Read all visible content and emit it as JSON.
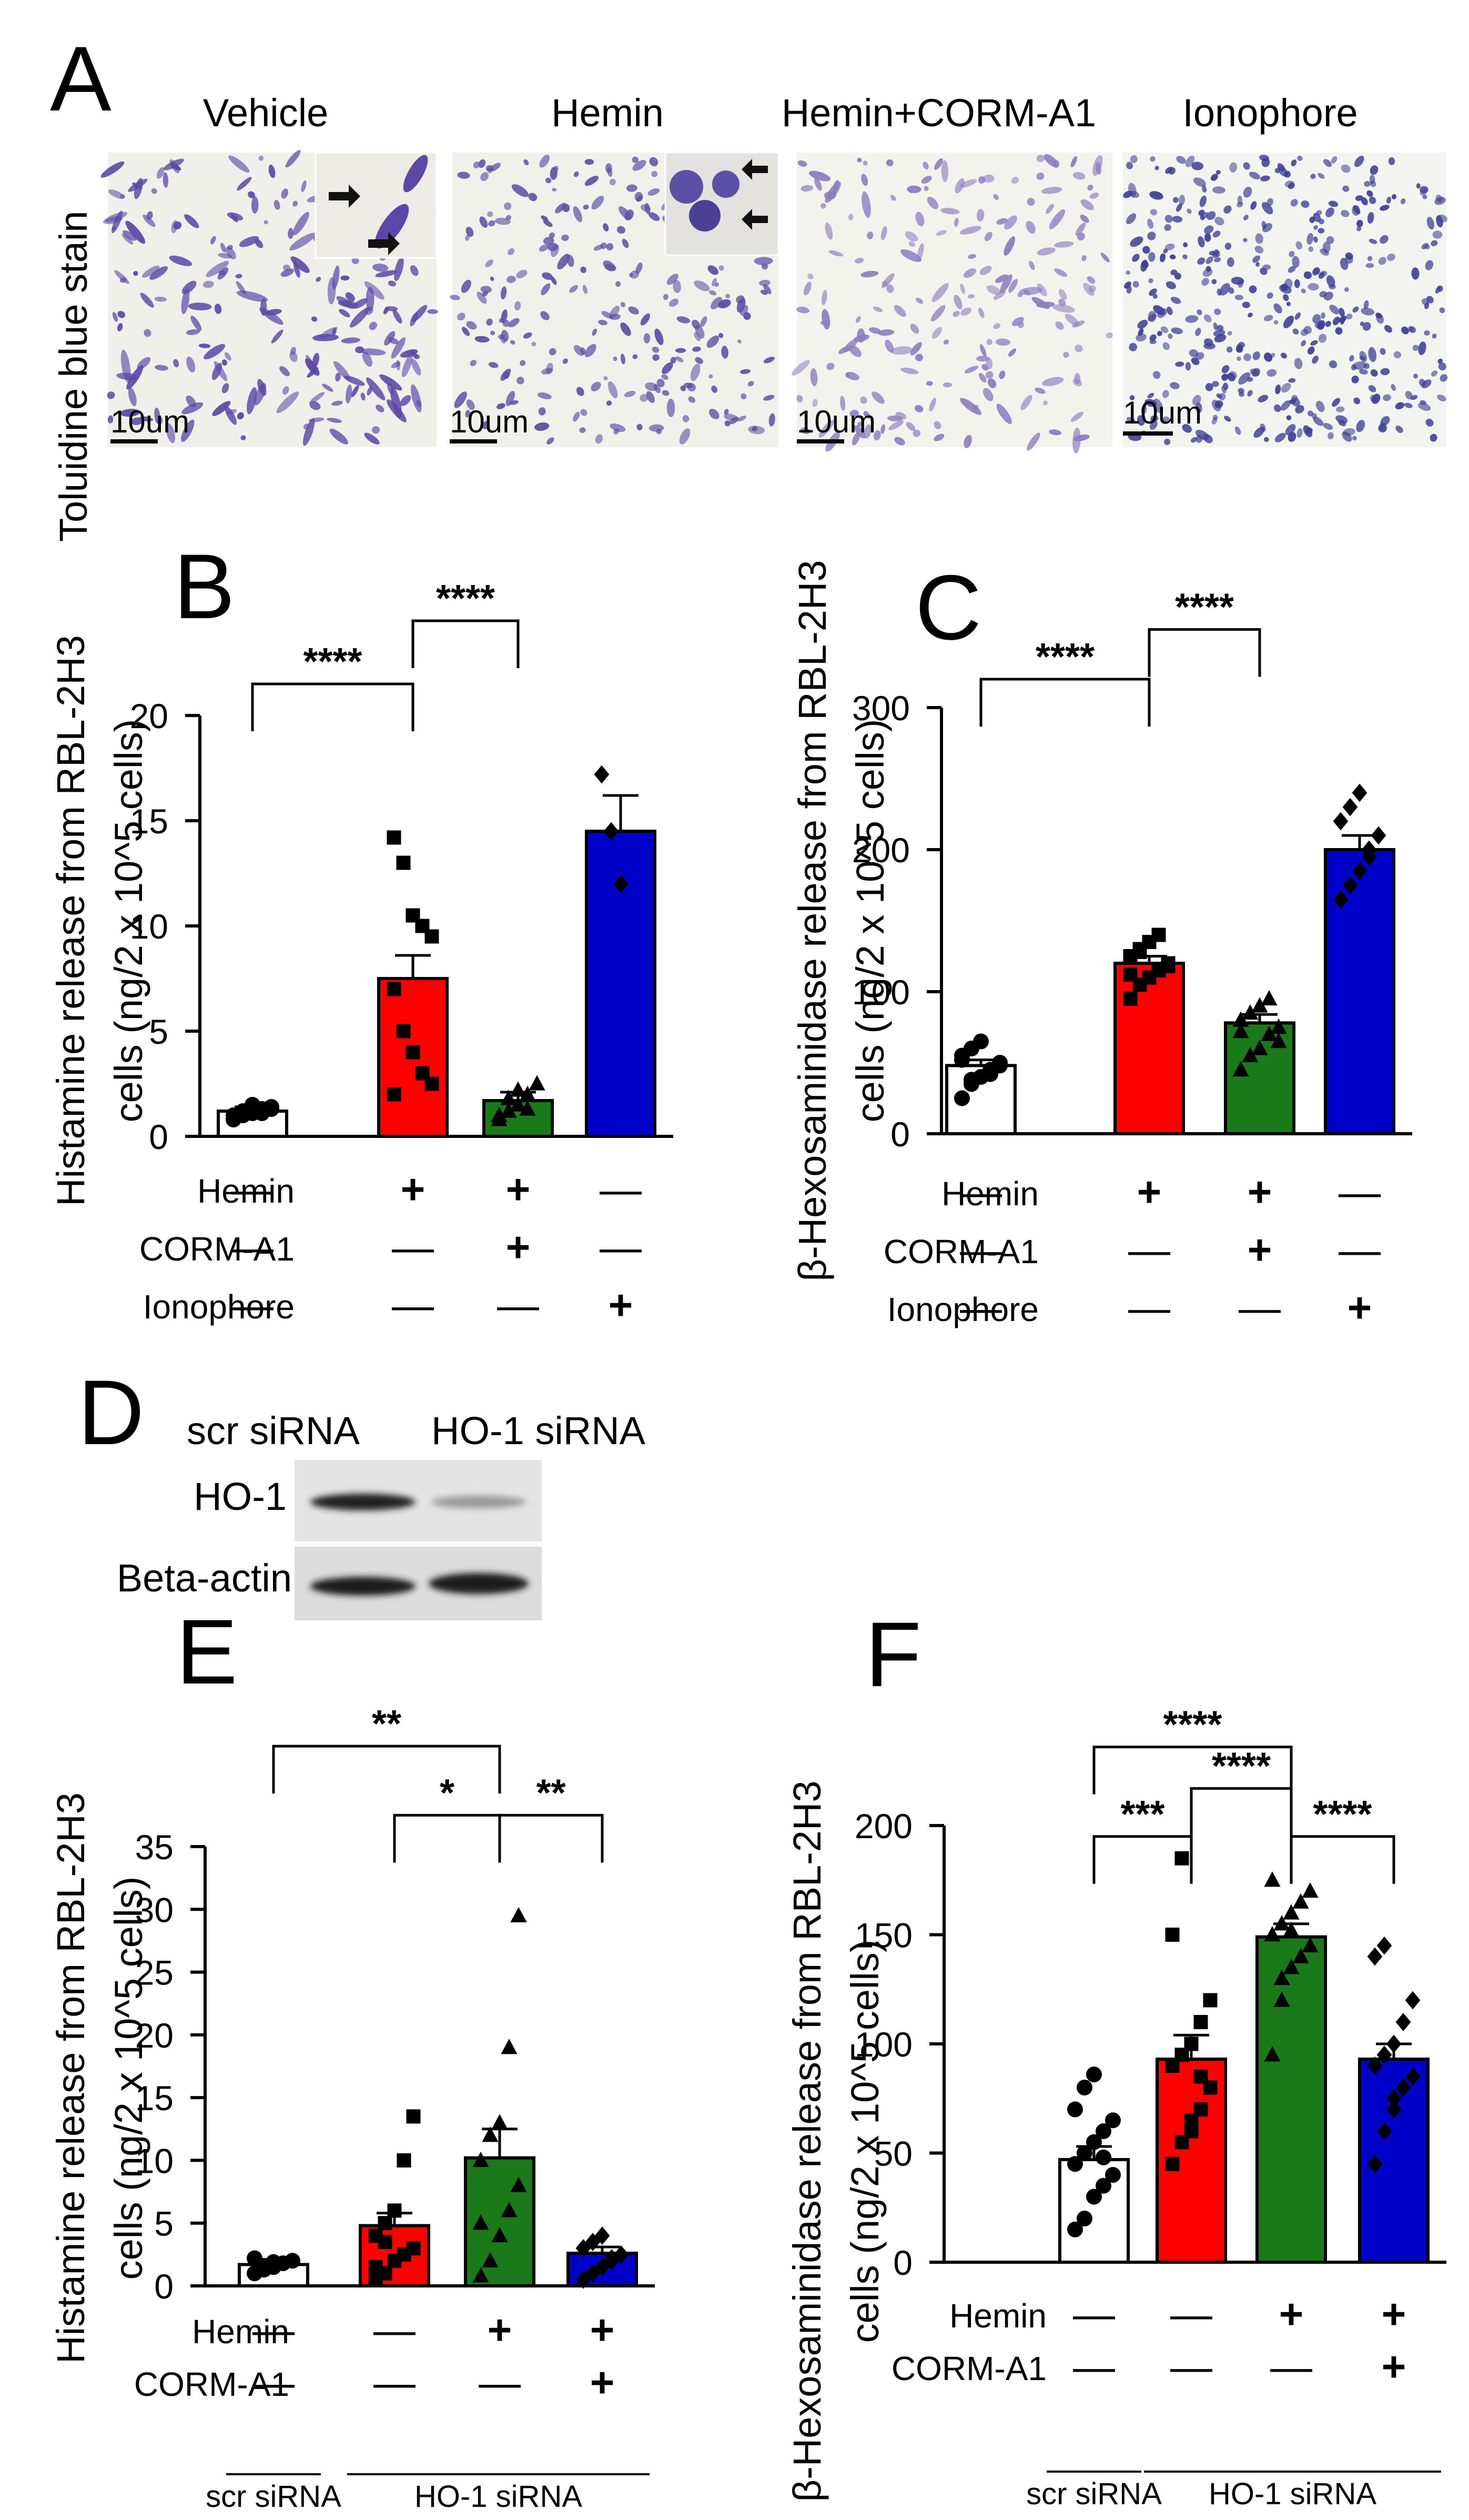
{
  "panels": {
    "A": "A",
    "B": "B",
    "C": "C",
    "D": "D",
    "E": "E",
    "F": "F"
  },
  "panel_a": {
    "side_label": "Toluidine blue stain",
    "scale_bar": "10um",
    "images": [
      {
        "label": "Vehicle",
        "cell_color": "#5c47a8"
      },
      {
        "label": "Hemin",
        "cell_color": "#5b4fa6"
      },
      {
        "label": "Hemin+CORM-A1",
        "cell_color": "#8a7cc0"
      },
      {
        "label": "Ionophore",
        "cell_color": "#3c3f97"
      }
    ]
  },
  "panel_d": {
    "columns": [
      "scr siRNA",
      "HO-1 siRNA"
    ],
    "rows": [
      "HO-1",
      "Beta-actin"
    ]
  },
  "conditions": {
    "hemin": "Hemin",
    "corm": "CORM-A1",
    "ionophore": "Ionophore",
    "plus": "+",
    "minus": "—",
    "group_scr": "scr siRNA",
    "group_ho1": "HO-1 siRNA"
  },
  "colors": {
    "vehicle": "#ffffff",
    "hemin": "#ff0000",
    "corm": "#1a7a1a",
    "iono": "#0000c8"
  },
  "chart_data": [
    {
      "id": "B",
      "type": "bar",
      "ylabel": [
        "Histamine release from RBL-2H3",
        "cells (ng/2 x 10^5 cells)"
      ],
      "ylim": [
        0,
        20
      ],
      "yticks": [
        0,
        5,
        10,
        15,
        20
      ],
      "categories": [
        "Vehicle",
        "Hemin",
        "Hemin+CORM-A1",
        "Ionophore"
      ],
      "values": [
        1.2,
        7.5,
        1.7,
        14.5
      ],
      "errors": [
        0.2,
        1.1,
        0.4,
        1.7
      ],
      "colors": [
        "#ffffff",
        "#ff0000",
        "#1a7a1a",
        "#0000c8"
      ],
      "markers": [
        "circle",
        "square",
        "triangle",
        "diamond"
      ],
      "points": [
        [
          0.8,
          1.0,
          1.1,
          1.3,
          1.4,
          1.0,
          1.2,
          1.5,
          1.1,
          1.3
        ],
        [
          14.2,
          13.0,
          10.5,
          10.0,
          9.5,
          7.0,
          5.0,
          4.0,
          3.0,
          2.5,
          2.0
        ],
        [
          0.8,
          1.2,
          1.5,
          2.0,
          2.5,
          1.0,
          1.8,
          2.2,
          1.3
        ],
        [
          17.2,
          14.5,
          12.0
        ]
      ],
      "significance": [
        {
          "from": 0,
          "to": 1,
          "label": "****",
          "y": 21.5
        },
        {
          "from": 1,
          "to": 2,
          "label": "****",
          "y": 24.5
        }
      ],
      "rows": [
        {
          "name": "Hemin",
          "vals": [
            "—",
            "+",
            "+",
            "—"
          ]
        },
        {
          "name": "CORM-A1",
          "vals": [
            "—",
            "—",
            "+",
            "—"
          ]
        },
        {
          "name": "Ionophore",
          "vals": [
            "—",
            "—",
            "—",
            "+"
          ]
        }
      ]
    },
    {
      "id": "C",
      "type": "bar",
      "ylabel": [
        "β-Hexosaminidase release from RBL-2H3",
        "cells (ng/2 x 10^5 cells)"
      ],
      "ylim": [
        0,
        300
      ],
      "yticks": [
        0,
        100,
        200,
        300
      ],
      "categories": [
        "Vehicle",
        "Hemin",
        "Hemin+CORM-A1",
        "Ionophore"
      ],
      "values": [
        48,
        120,
        78,
        200
      ],
      "errors": [
        4,
        5,
        6,
        10
      ],
      "colors": [
        "#ffffff",
        "#ff0000",
        "#1a7a1a",
        "#0000c8"
      ],
      "markers": [
        "circle",
        "square",
        "triangle",
        "diamond"
      ],
      "points": [
        [
          25,
          35,
          40,
          45,
          50,
          55,
          60,
          65,
          42,
          48,
          52,
          38
        ],
        [
          95,
          105,
          110,
          115,
          120,
          125,
          130,
          135,
          140,
          118,
          112,
          128
        ],
        [
          45,
          55,
          60,
          70,
          75,
          80,
          85,
          90,
          95,
          65,
          72
        ],
        [
          165,
          175,
          185,
          200,
          210,
          220,
          230,
          240,
          195
        ]
      ],
      "significance": [
        {
          "from": 0,
          "to": 1,
          "label": "****",
          "y": 320
        },
        {
          "from": 1,
          "to": 2,
          "label": "****",
          "y": 355
        }
      ],
      "rows": [
        {
          "name": "Hemin",
          "vals": [
            "—",
            "+",
            "+",
            "—"
          ]
        },
        {
          "name": "CORM-A1",
          "vals": [
            "—",
            "—",
            "+",
            "—"
          ]
        },
        {
          "name": "Ionophore",
          "vals": [
            "—",
            "—",
            "—",
            "+"
          ]
        }
      ]
    },
    {
      "id": "E",
      "type": "bar",
      "ylabel": [
        "Histamine release from RBL-2H3",
        "cells (ng/2 x 10^5 cells)"
      ],
      "ylim": [
        0,
        35
      ],
      "yticks": [
        0,
        5,
        10,
        15,
        20,
        25,
        30,
        35
      ],
      "categories": [
        "scr siRNA",
        "HO-1 siRNA",
        "HO-1 siRNA + Hemin",
        "HO-1 siRNA + Hemin + CORM-A1"
      ],
      "values": [
        1.7,
        4.8,
        10.2,
        2.6
      ],
      "errors": [
        0.2,
        1.0,
        2.3,
        0.5
      ],
      "colors": [
        "#ffffff",
        "#ff0000",
        "#1a7a1a",
        "#0000c8"
      ],
      "markers": [
        "circle",
        "square",
        "triangle",
        "diamond"
      ],
      "points": [
        [
          1.0,
          1.3,
          1.5,
          1.8,
          2.0,
          2.2,
          1.6,
          1.9
        ],
        [
          0.5,
          1.0,
          2.0,
          2.5,
          3.0,
          4.0,
          5.0,
          6.0,
          10.0,
          13.5,
          1.5,
          3.5
        ],
        [
          0.8,
          2.0,
          4.0,
          6.0,
          8.0,
          10.0,
          12.0,
          13.0,
          19.0,
          29.5,
          5.0
        ],
        [
          0.5,
          1.0,
          1.5,
          2.0,
          2.5,
          3.0,
          3.5,
          4.0,
          2.2
        ]
      ],
      "significance": [
        {
          "from": 0,
          "to": 2,
          "label": "**",
          "y": 43
        },
        {
          "from": 1,
          "to": 2,
          "label": "*",
          "y": 37.5
        },
        {
          "from": 2,
          "to": 3,
          "label": "**",
          "y": 37.5
        }
      ],
      "rows": [
        {
          "name": "Hemin",
          "vals": [
            "—",
            "—",
            "+",
            "+"
          ]
        },
        {
          "name": "CORM-A1",
          "vals": [
            "—",
            "—",
            "—",
            "+"
          ]
        }
      ],
      "groups": [
        {
          "label": "scr siRNA",
          "from": 0,
          "to": 0
        },
        {
          "label": "HO-1 siRNA",
          "from": 1,
          "to": 3
        }
      ]
    },
    {
      "id": "F",
      "type": "bar",
      "ylabel": [
        "β-Hexosaminidase release from RBL-2H3",
        "cells (ng/2 x 10^5 cells)"
      ],
      "ylim": [
        0,
        200
      ],
      "yticks": [
        0,
        50,
        100,
        150,
        200
      ],
      "categories": [
        "scr siRNA",
        "HO-1 siRNA",
        "HO-1 siRNA + Hemin",
        "HO-1 siRNA + Hemin + CORM-A1"
      ],
      "values": [
        47,
        93,
        149,
        93
      ],
      "errors": [
        6,
        11,
        6,
        7
      ],
      "colors": [
        "#ffffff",
        "#ff0000",
        "#1a7a1a",
        "#0000c8"
      ],
      "markers": [
        "circle",
        "square",
        "triangle",
        "diamond"
      ],
      "points": [
        [
          15,
          20,
          30,
          35,
          40,
          45,
          50,
          55,
          60,
          65,
          70,
          80,
          86,
          48
        ],
        [
          45,
          55,
          60,
          70,
          80,
          90,
          95,
          100,
          110,
          120,
          150,
          185,
          65,
          85
        ],
        [
          95,
          120,
          135,
          140,
          145,
          150,
          155,
          160,
          165,
          170,
          175,
          130,
          152
        ],
        [
          45,
          60,
          70,
          80,
          85,
          90,
          95,
          100,
          110,
          120,
          140,
          145,
          75
        ]
      ],
      "significance": [
        {
          "from": 0,
          "to": 2,
          "label": "****",
          "y": 236
        },
        {
          "from": 1,
          "to": 2,
          "label": "****",
          "y": 217
        },
        {
          "from": 0,
          "to": 1,
          "label": "***",
          "y": 195
        },
        {
          "from": 2,
          "to": 3,
          "label": "****",
          "y": 195
        }
      ],
      "rows": [
        {
          "name": "Hemin",
          "vals": [
            "—",
            "—",
            "+",
            "+"
          ]
        },
        {
          "name": "CORM-A1",
          "vals": [
            "—",
            "—",
            "—",
            "+"
          ]
        }
      ],
      "groups": [
        {
          "label": "scr siRNA",
          "from": 0,
          "to": 0
        },
        {
          "label": "HO-1 siRNA",
          "from": 1,
          "to": 3
        }
      ]
    }
  ]
}
